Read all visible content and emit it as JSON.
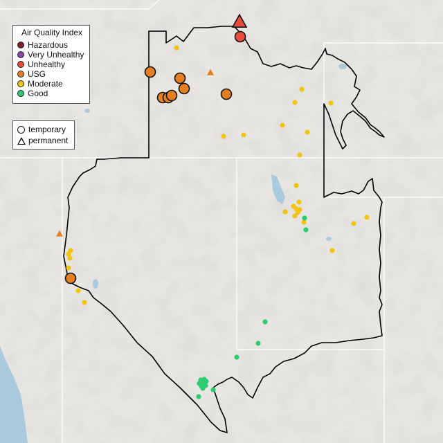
{
  "legend": {
    "title": "Air Quality Index",
    "categories": [
      {
        "label": "Hazardous",
        "color": "#7e1f2a"
      },
      {
        "label": "Very Unhealthy",
        "color": "#8e44ad"
      },
      {
        "label": "Unhealthy",
        "color": "#e74c3c"
      },
      {
        "label": "USG",
        "color": "#e67e22"
      },
      {
        "label": "Moderate",
        "color": "#f1c40f"
      },
      {
        "label": "Good",
        "color": "#2ecc71"
      }
    ],
    "types": [
      {
        "label": "temporary",
        "shape": "circle"
      },
      {
        "label": "permanent",
        "shape": "triangle"
      }
    ]
  },
  "colors": {
    "land": "#e8e6e3",
    "ocean": "#a9c9dc",
    "lakes": "#a9c9dc",
    "state_lines": "#ffffff",
    "region_outline": "#000000"
  }
}
